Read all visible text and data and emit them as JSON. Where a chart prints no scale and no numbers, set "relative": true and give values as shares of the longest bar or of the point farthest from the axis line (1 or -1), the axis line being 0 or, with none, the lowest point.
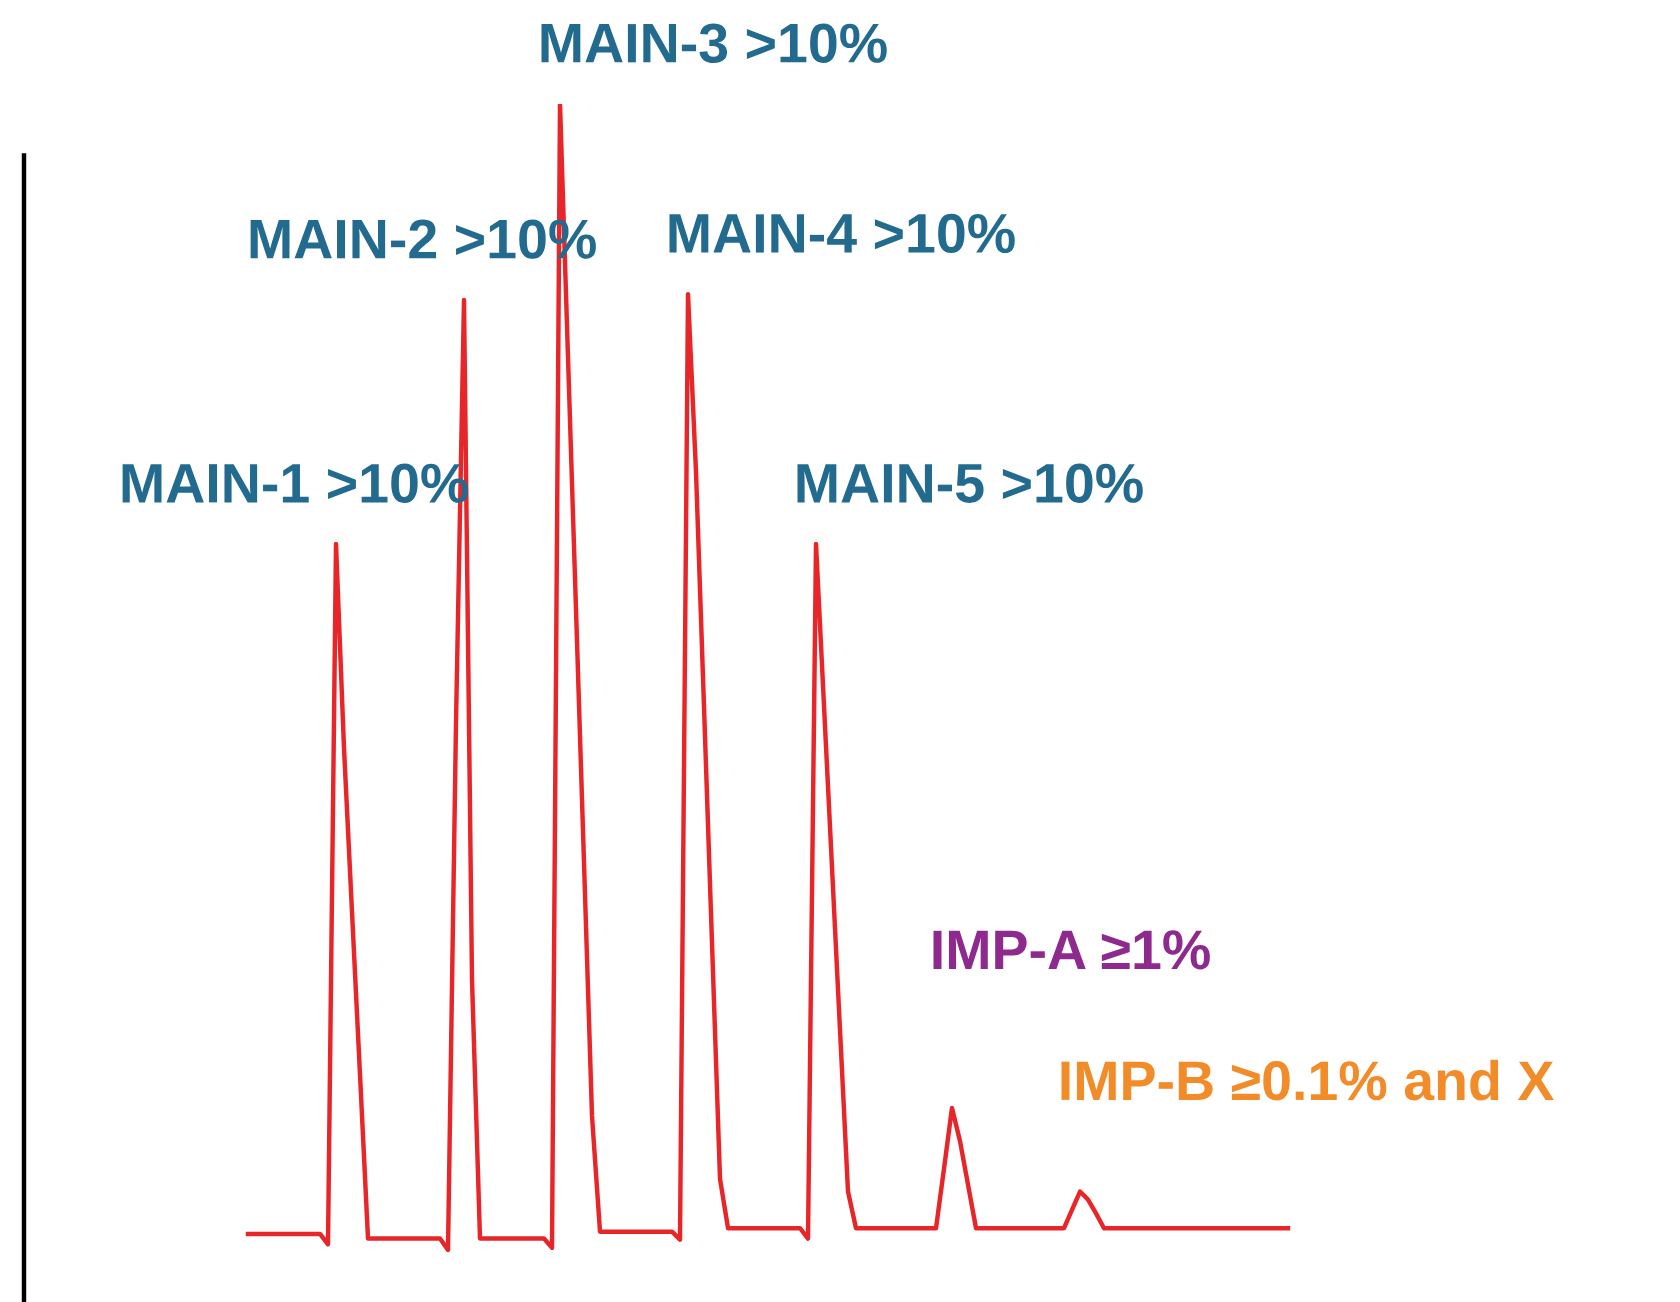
{
  "chart_data": {
    "type": "line",
    "relative": true,
    "line_style": "solid",
    "categories": [
      null,
      null,
      null,
      null,
      null,
      null,
      null,
      null,
      null,
      null,
      null,
      null,
      null,
      null,
      null,
      null,
      null,
      null,
      null,
      null,
      null,
      null,
      null,
      null,
      null,
      null,
      null,
      null,
      null,
      null,
      null,
      null,
      null,
      null,
      null,
      null,
      null,
      null,
      null,
      null,
      null,
      null,
      null,
      null,
      null,
      null,
      null,
      null,
      null,
      null,
      null,
      null,
      null,
      null,
      null,
      null,
      null,
      null,
      null,
      null,
      null,
      null,
      null,
      null,
      null,
      null,
      null,
      null,
      null,
      null,
      null,
      null,
      null,
      null,
      null,
      null,
      null,
      null,
      null,
      null,
      null,
      null,
      null,
      null,
      null,
      null,
      null,
      null,
      null,
      null,
      null,
      null,
      null,
      null,
      null,
      null,
      null,
      null,
      null,
      null,
      null,
      null,
      null,
      null,
      null,
      null,
      null,
      null,
      null,
      null,
      null,
      null,
      null,
      null,
      null,
      null,
      null,
      null,
      null,
      null,
      null,
      null,
      null,
      null,
      null,
      null,
      null,
      null,
      null,
      null,
      null
    ],
    "series": [
      {
        "color": "#e8262a",
        "values": [
          0.014,
          0.014,
          0.014,
          0.014,
          0.014,
          0.014,
          0.014,
          0.014,
          0.014,
          0.014,
          0.005,
          0.616,
          0.438,
          0.295,
          0.153,
          0.01,
          0.01,
          0.01,
          0.01,
          0.01,
          0.01,
          0.01,
          0.01,
          0.01,
          0.01,
          0.0,
          0.46,
          0.829,
          0.236,
          0.01,
          0.01,
          0.01,
          0.01,
          0.01,
          0.01,
          0.01,
          0.01,
          0.01,
          0.002,
          1.0,
          0.779,
          0.559,
          0.338,
          0.117,
          0.016,
          0.016,
          0.016,
          0.016,
          0.016,
          0.016,
          0.016,
          0.016,
          0.016,
          0.016,
          0.009,
          0.834,
          0.679,
          0.474,
          0.268,
          0.062,
          0.019,
          0.019,
          0.019,
          0.019,
          0.019,
          0.019,
          0.019,
          0.019,
          0.019,
          0.019,
          0.01,
          0.616,
          0.475,
          0.334,
          0.192,
          0.051,
          0.019,
          0.019,
          0.019,
          0.019,
          0.019,
          0.019,
          0.019,
          0.019,
          0.019,
          0.019,
          0.019,
          0.071,
          0.124,
          0.095,
          0.057,
          0.019,
          0.019,
          0.019,
          0.019,
          0.019,
          0.019,
          0.019,
          0.019,
          0.019,
          0.019,
          0.019,
          0.019,
          0.035,
          0.051,
          0.044,
          0.032,
          0.019,
          0.019,
          0.019,
          0.019,
          0.019,
          0.019,
          0.019,
          0.019,
          0.019,
          0.019,
          0.019,
          0.019,
          0.019,
          0.019,
          0.019,
          0.019,
          0.019,
          0.019,
          0.019,
          0.019,
          0.019,
          0.019,
          0.019,
          0.019
        ]
      }
    ],
    "annotations": [
      "MAIN-1 >10%",
      "MAIN-2 >10%",
      "MAIN-3 >10%",
      "MAIN-4 >10%",
      "MAIN-5 >10%",
      "IMP-A ≥1%",
      "IMP-B ≥0.1% and X"
    ]
  }
}
